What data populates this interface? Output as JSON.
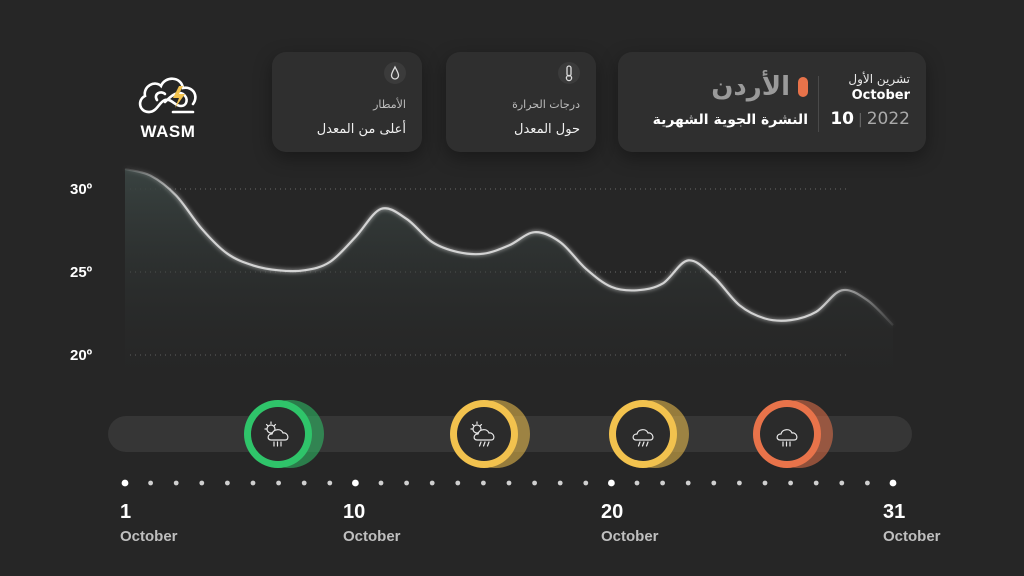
{
  "brand": {
    "name": "WASM"
  },
  "header": {
    "country": "الأردن",
    "subtitle": "النشرة الجوية الشهرية",
    "month_ar": "تشرين الأول",
    "month_en": "October",
    "day": "10",
    "year": "2022"
  },
  "cards": {
    "temperature": {
      "label": "درجات الحرارة",
      "value": "حول المعدل"
    },
    "rain": {
      "label": "الأمطار",
      "value": "أعلى من المعدل"
    }
  },
  "colors": {
    "background": "#262626",
    "card": "#2f2f2f",
    "accent": "#e8734a",
    "green": "#2fc46a",
    "yellow": "#f2c24e",
    "orange": "#e8734a"
  },
  "chart_data": {
    "type": "area",
    "title": "",
    "xlabel": "",
    "ylabel": "",
    "ylim": [
      20,
      30
    ],
    "xlim": [
      1,
      31
    ],
    "y_tick_labels": [
      "30º",
      "25º",
      "20º"
    ],
    "y_ticks": [
      30,
      25,
      20
    ],
    "grid": true,
    "x": [
      1,
      2,
      3,
      4,
      5,
      6,
      7,
      8,
      9,
      10,
      11,
      12,
      13,
      14,
      15,
      16,
      17,
      18,
      19,
      20,
      21,
      22,
      23,
      24,
      25,
      26,
      27,
      28,
      29,
      30,
      31
    ],
    "series": [
      {
        "values": [
          31.2,
          30.8,
          29.6,
          27.6,
          26.1,
          25.4,
          25.1,
          25.1,
          25.6,
          27.1,
          28.8,
          28.2,
          26.8,
          26.2,
          26.1,
          26.6,
          27.4,
          26.8,
          25.2,
          24.1,
          23.9,
          24.3,
          25.7,
          24.7,
          23.0,
          22.2,
          22.1,
          22.6,
          23.9,
          23.3,
          21.8
        ]
      }
    ],
    "highlight_days": [
      1,
      10,
      20,
      31
    ],
    "day_labels": [
      {
        "day": "1",
        "month": "October"
      },
      {
        "day": "10",
        "month": "October"
      },
      {
        "day": "20",
        "month": "October"
      },
      {
        "day": "31",
        "month": "October"
      }
    ],
    "weather_events": [
      {
        "day": 7,
        "icon": "sun-cloud-rain-icon",
        "color": "#2fc46a"
      },
      {
        "day": 15,
        "icon": "sun-cloud-storm-icon",
        "color": "#f2c24e"
      },
      {
        "day": 21,
        "icon": "cloud-lightning-icon",
        "color": "#f2c24e"
      },
      {
        "day": 27,
        "icon": "cloud-rain-icon",
        "color": "#e8734a"
      }
    ]
  }
}
